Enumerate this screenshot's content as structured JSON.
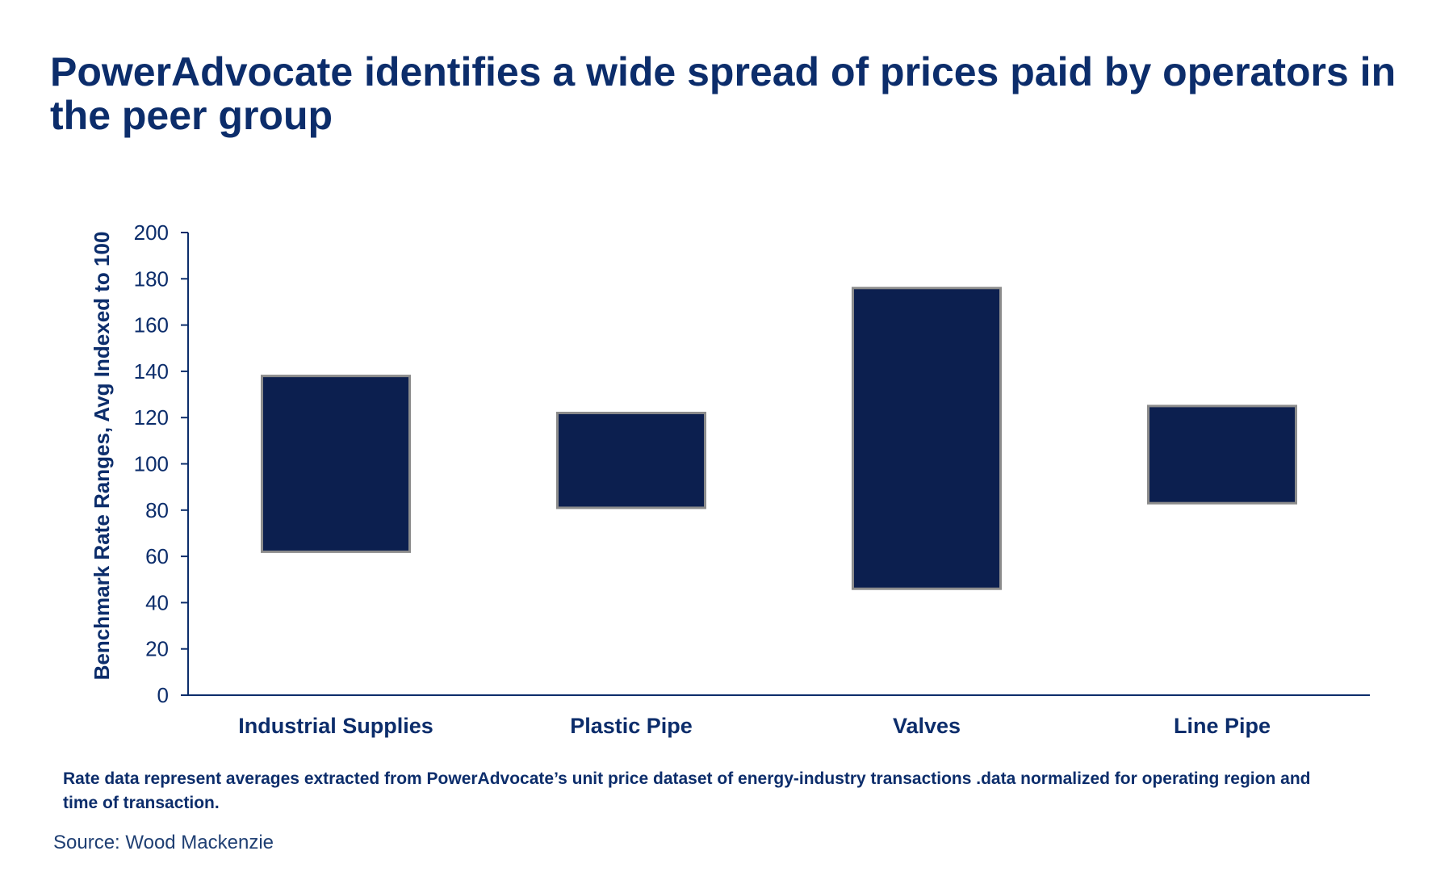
{
  "colors": {
    "bar_fill": "#0c1f4f",
    "bar_stroke": "#8c8c8c",
    "axis": "#0c2d6b",
    "text": "#0c2d6b"
  },
  "chart_data": {
    "type": "bar",
    "subtype": "floating-range",
    "title": "PowerAdvocate identifies a wide spread of prices paid by operators in the peer group",
    "xlabel": "",
    "ylabel": "Benchmark Rate Ranges, Avg Indexed to 100",
    "ylim": [
      0,
      200
    ],
    "yticks": [
      0,
      20,
      40,
      60,
      80,
      100,
      120,
      140,
      160,
      180,
      200
    ],
    "grid": false,
    "legend": "none",
    "categories": [
      "Industrial Supplies",
      "Plastic Pipe",
      "Valves",
      "Line Pipe"
    ],
    "ranges": [
      {
        "low": 62,
        "high": 138
      },
      {
        "low": 81,
        "high": 122
      },
      {
        "low": 46,
        "high": 176
      },
      {
        "low": 83,
        "high": 125
      }
    ]
  },
  "footnote": "Rate data represent averages extracted from PowerAdvocate’s unit price dataset of energy-industry transactions .data normalized for operating region and time of transaction.",
  "source": "Source: Wood Mackenzie"
}
